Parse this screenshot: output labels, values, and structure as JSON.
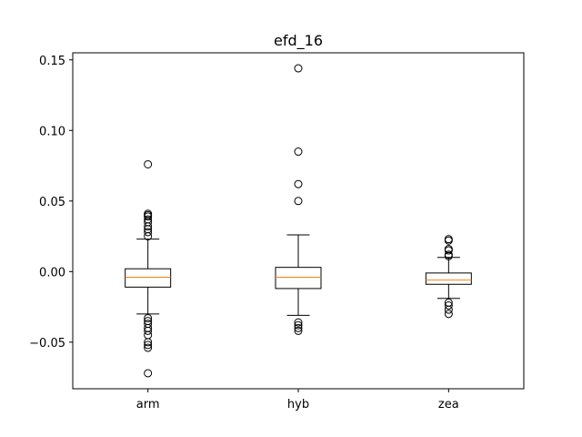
{
  "chart_data": {
    "type": "boxplot",
    "title": "efd_16",
    "xlabel": "",
    "ylabel": "",
    "categories": [
      "arm",
      "hyb",
      "zea"
    ],
    "ylim": [
      -0.083,
      0.155
    ],
    "yticks": [
      -0.05,
      0.0,
      0.05,
      0.1,
      0.15
    ],
    "ytick_labels": [
      "−0.05",
      "0.00",
      "0.05",
      "0.10",
      "0.15"
    ],
    "grid": false,
    "colors": {
      "box": "#000000",
      "median": "#ff7f0e",
      "flier": "#000000"
    },
    "boxes": [
      {
        "name": "arm",
        "whisker_low": -0.03,
        "q1": -0.011,
        "median": -0.004,
        "q3": 0.002,
        "whisker_high": 0.023,
        "fliers": [
          0.076,
          0.041,
          0.04,
          0.039,
          0.037,
          0.035,
          0.032,
          0.03,
          0.028,
          0.025,
          -0.033,
          -0.035,
          -0.037,
          -0.04,
          -0.042,
          -0.045,
          -0.05,
          -0.052,
          -0.054,
          -0.072
        ]
      },
      {
        "name": "hyb",
        "whisker_low": -0.031,
        "q1": -0.012,
        "median": -0.004,
        "q3": 0.003,
        "whisker_high": 0.026,
        "fliers": [
          0.144,
          0.085,
          0.062,
          0.05,
          -0.036,
          -0.038,
          -0.04,
          -0.042
        ]
      },
      {
        "name": "zea",
        "whisker_low": -0.019,
        "q1": -0.009,
        "median": -0.006,
        "q3": -0.001,
        "whisker_high": 0.01,
        "fliers": [
          0.023,
          0.022,
          0.016,
          0.015,
          0.012,
          0.011,
          -0.022,
          -0.024,
          -0.027,
          -0.03
        ]
      }
    ]
  }
}
